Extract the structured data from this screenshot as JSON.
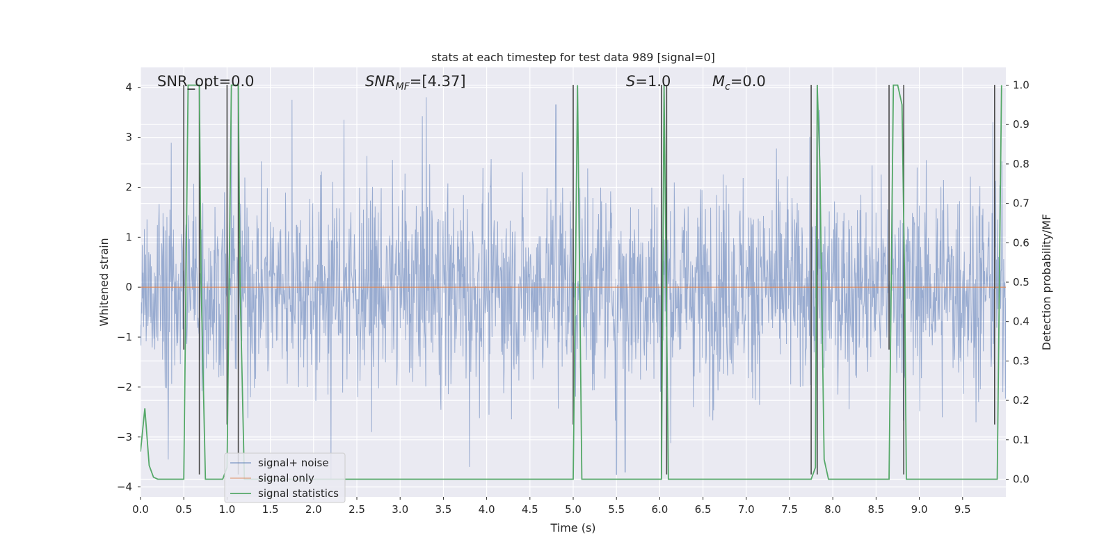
{
  "chart_data": {
    "type": "line",
    "title": "stats at each timestep for test data 989 [signal=0]",
    "xlabel": "Time (s)",
    "ylabel": "Whitened strain",
    "y2label": "Detection probability/MF",
    "xlim": [
      0,
      10
    ],
    "ylim": [
      -4.2,
      4.4
    ],
    "y2lim": [
      -0.045,
      1.045
    ],
    "xticks": [
      0.0,
      0.5,
      1.0,
      1.5,
      2.0,
      2.5,
      3.0,
      3.5,
      4.0,
      4.5,
      5.0,
      5.5,
      6.0,
      6.5,
      7.0,
      7.5,
      8.0,
      8.5,
      9.0,
      9.5
    ],
    "xtick_labels": [
      "0.0",
      "0.5",
      "1.0",
      "1.5",
      "2.0",
      "2.5",
      "3.0",
      "3.5",
      "4.0",
      "4.5",
      "5.0",
      "5.5",
      "6.0",
      "6.5",
      "7.0",
      "7.5",
      "8.0",
      "8.5",
      "9.0",
      "9.5"
    ],
    "yticks": [
      -4,
      -3,
      -2,
      -1,
      0,
      1,
      2,
      3,
      4
    ],
    "ytick_labels": [
      "−4",
      "−3",
      "−2",
      "−1",
      "0",
      "1",
      "2",
      "3",
      "4"
    ],
    "y2ticks": [
      0.0,
      0.1,
      0.2,
      0.3,
      0.4,
      0.5,
      0.6,
      0.7,
      0.8,
      0.9,
      1.0
    ],
    "y2tick_labels": [
      "0.0",
      "0.1",
      "0.2",
      "0.3",
      "0.4",
      "0.5",
      "0.6",
      "0.7",
      "0.8",
      "0.9",
      "1.0"
    ],
    "grid": true,
    "legend_position": "lower-left",
    "annotations": {
      "snr_opt": "SNR_opt=0.0",
      "snr_mf_sym": "SNR",
      "snr_mf_sub": "MF",
      "snr_mf_val": "=[4.37]",
      "s_sym": "S",
      "s_val": "=1.0",
      "mc_sym": "M",
      "mc_sub": "c",
      "mc_val": "=0.0"
    },
    "series": [
      {
        "name": "signal+ noise",
        "color": "#4c72b0",
        "kind": "noise",
        "std": 1.0,
        "peaks": [
          {
            "t": 1.05,
            "v": 3.35
          },
          {
            "t": 1.75,
            "v": 3.75
          },
          {
            "t": 2.35,
            "v": 3.35
          },
          {
            "t": 3.3,
            "v": 3.8
          },
          {
            "t": 4.8,
            "v": 3.65
          },
          {
            "t": 7.85,
            "v": 3.55
          },
          {
            "t": 9.85,
            "v": 3.3
          },
          {
            "t": 2.2,
            "v": -3.85
          },
          {
            "t": 5.5,
            "v": -3.75
          },
          {
            "t": 5.6,
            "v": -3.7
          },
          {
            "t": 3.8,
            "v": -3.6
          },
          {
            "t": 0.32,
            "v": -3.45
          }
        ]
      },
      {
        "name": "signal only",
        "color": "#dd8452",
        "kind": "flat",
        "value": 0.0
      },
      {
        "name": "signal statistics",
        "color": "#55a868",
        "axis": "y2",
        "x": [
          0.0,
          0.05,
          0.1,
          0.15,
          0.2,
          0.25,
          0.45,
          0.5,
          0.55,
          0.6,
          0.65,
          0.68,
          0.7,
          0.75,
          0.8,
          0.95,
          1.0,
          1.05,
          1.1,
          1.13,
          1.15,
          1.2,
          1.3,
          4.98,
          5.0,
          5.05,
          5.1,
          5.15,
          6.02,
          6.05,
          6.1,
          6.15,
          7.75,
          7.8,
          7.82,
          7.85,
          7.9,
          7.95,
          8.6,
          8.65,
          8.7,
          8.75,
          8.8,
          8.83,
          8.85,
          9.85,
          9.9,
          9.95
        ],
        "y": [
          0.07,
          0.18,
          0.035,
          0.005,
          0.0,
          0.0,
          0.0,
          0.0,
          1.0,
          1.0,
          1.0,
          1.0,
          0.5,
          0.0,
          0.0,
          0.0,
          0.03,
          1.0,
          1.0,
          1.0,
          0.5,
          0.0,
          0.0,
          0.0,
          0.0,
          1.0,
          0.0,
          0.0,
          0.0,
          1.0,
          0.0,
          0.0,
          0.0,
          0.03,
          1.0,
          0.8,
          0.05,
          0.0,
          0.0,
          0.0,
          1.0,
          1.0,
          0.95,
          0.5,
          0.0,
          0.0,
          0.0,
          1.0
        ]
      }
    ],
    "markers": {
      "color": "#4a4a4a",
      "lines": [
        {
          "t": 0.5,
          "from": -1.25,
          "to": 4.05
        },
        {
          "t": 0.68,
          "from": -3.75,
          "to": 4.05
        },
        {
          "t": 1.0,
          "from": -2.75,
          "to": 4.05
        },
        {
          "t": 1.13,
          "from": -3.75,
          "to": 4.05
        },
        {
          "t": 5.0,
          "from": -2.75,
          "to": 4.05
        },
        {
          "t": 6.02,
          "from": -3.75,
          "to": 4.05
        },
        {
          "t": 6.08,
          "from": -3.75,
          "to": 4.05
        },
        {
          "t": 7.75,
          "from": -3.75,
          "to": 4.05
        },
        {
          "t": 7.82,
          "from": -3.75,
          "to": 4.05
        },
        {
          "t": 8.65,
          "from": -1.25,
          "to": 4.05
        },
        {
          "t": 8.82,
          "from": -3.75,
          "to": 4.05
        },
        {
          "t": 9.87,
          "from": -2.75,
          "to": 4.05
        }
      ]
    }
  }
}
